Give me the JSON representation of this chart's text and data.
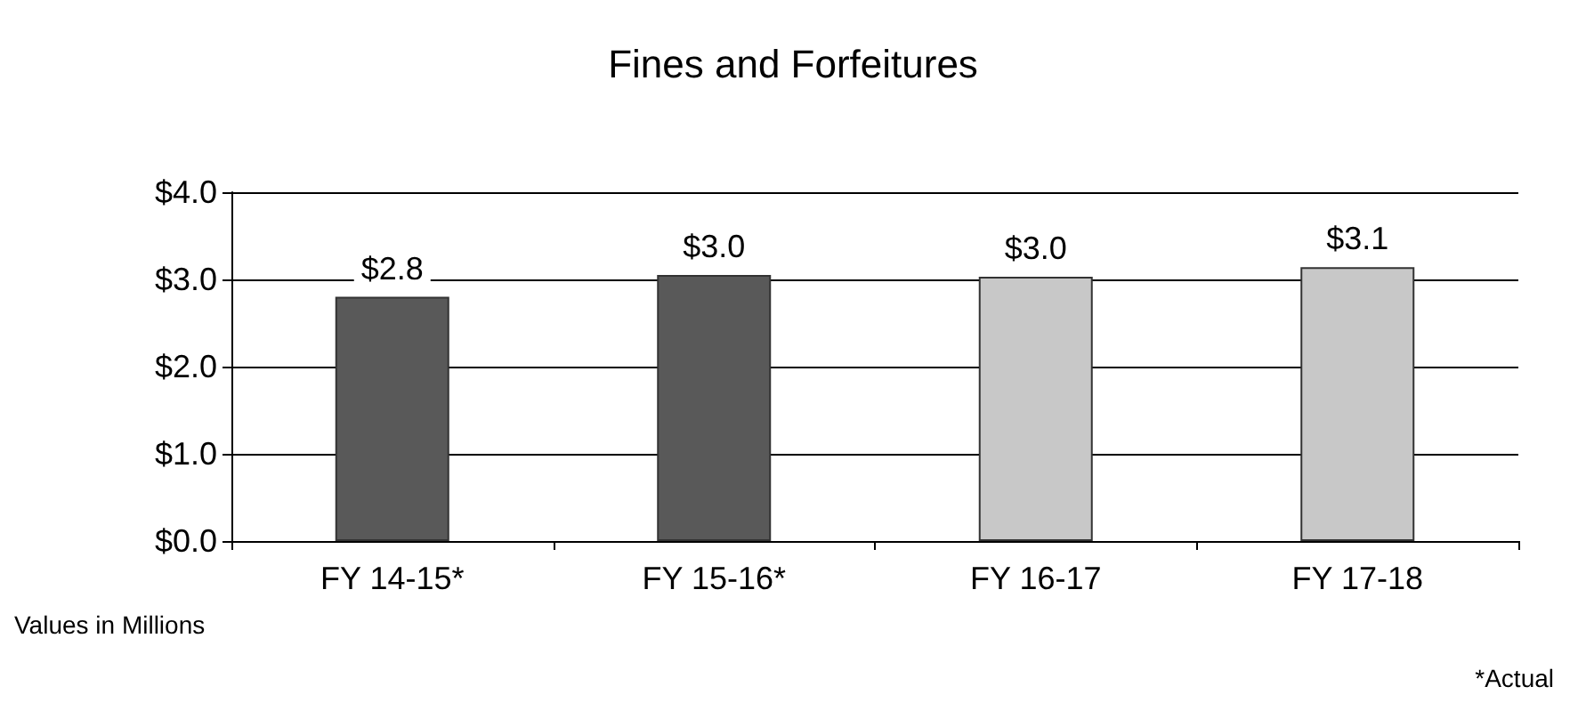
{
  "chart_data": {
    "type": "bar",
    "title": "Fines and Forfeitures",
    "categories": [
      "FY 14-15*",
      "FY 15-16*",
      "FY 16-17",
      "FY 17-18"
    ],
    "values": [
      2.8,
      3.05,
      3.03,
      3.14
    ],
    "colors": [
      "#595959",
      "#595959",
      "#c8c8c8",
      "#c8c8c8"
    ],
    "value_labels": [
      "$2.8",
      "$3.0",
      "$3.0",
      "$3.1"
    ],
    "ylim": [
      0,
      4
    ],
    "yticks": [
      {
        "value": 0,
        "label": "$0.0"
      },
      {
        "value": 1,
        "label": "$1.0"
      },
      {
        "value": 2,
        "label": "$2.0"
      },
      {
        "value": 3,
        "label": "$3.0"
      },
      {
        "value": 4,
        "label": "$4.0"
      }
    ],
    "grid": "y",
    "annotations": [
      "Values in Millions",
      "*Actual"
    ]
  }
}
